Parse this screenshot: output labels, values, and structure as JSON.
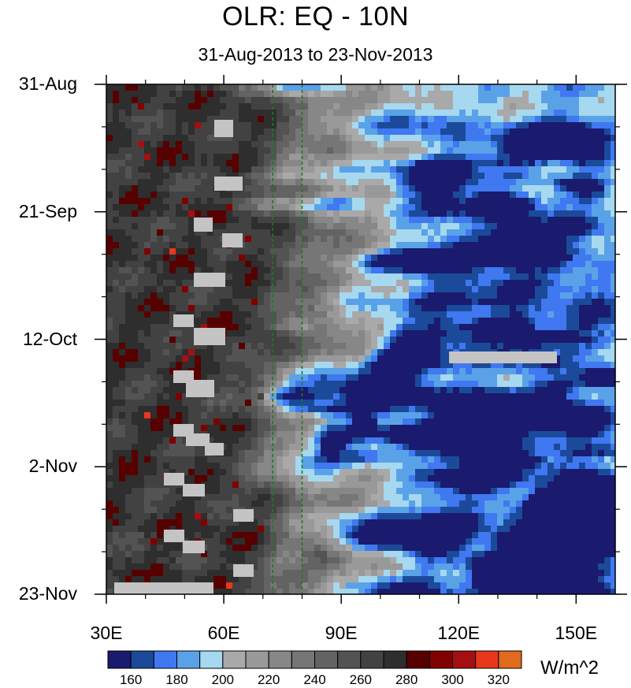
{
  "chart_data": {
    "type": "heatmap",
    "title": "OLR: EQ - 10N",
    "subtitle": "31-Aug-2013 to 23-Nov-2013",
    "x_range": [
      30,
      160
    ],
    "x_ticks": [
      {
        "value": 30,
        "label": "30E"
      },
      {
        "value": 60,
        "label": "60E"
      },
      {
        "value": 90,
        "label": "90E"
      },
      {
        "value": 120,
        "label": "120E"
      },
      {
        "value": 150,
        "label": "150E"
      }
    ],
    "y_range_dates": [
      "31-Aug-2013",
      "23-Nov-2013"
    ],
    "y_ticks": [
      {
        "date": "31-Aug-2013",
        "label": "31-Aug"
      },
      {
        "date": "21-Sep-2013",
        "label": "21-Sep"
      },
      {
        "date": "12-Oct-2013",
        "label": "12-Oct"
      },
      {
        "date": "2-Nov-2013",
        "label": "2-Nov"
      },
      {
        "date": "23-Nov-2013",
        "label": "23-Nov"
      }
    ],
    "reference_lines_longitude": [
      72.5,
      80
    ],
    "colorbar": {
      "units": "W/m^2",
      "levels": [
        150,
        160,
        170,
        180,
        190,
        200,
        210,
        220,
        230,
        240,
        250,
        260,
        270,
        280,
        290,
        300,
        310,
        320,
        330
      ],
      "tick_labels": [
        "160",
        "180",
        "200",
        "220",
        "240",
        "260",
        "280",
        "300",
        "320"
      ],
      "colors": [
        "#1a1a6e",
        "#1c4a9a",
        "#3f78f0",
        "#5aa2e8",
        "#a6d8ef",
        "#a9a9a9",
        "#999999",
        "#878787",
        "#767676",
        "#636363",
        "#535353",
        "#424242",
        "#2e2e2e",
        "#570000",
        "#800000",
        "#a50f0f",
        "#e8371a",
        "#e06a1e"
      ]
    },
    "missing_color": "#c4c4c4"
  }
}
